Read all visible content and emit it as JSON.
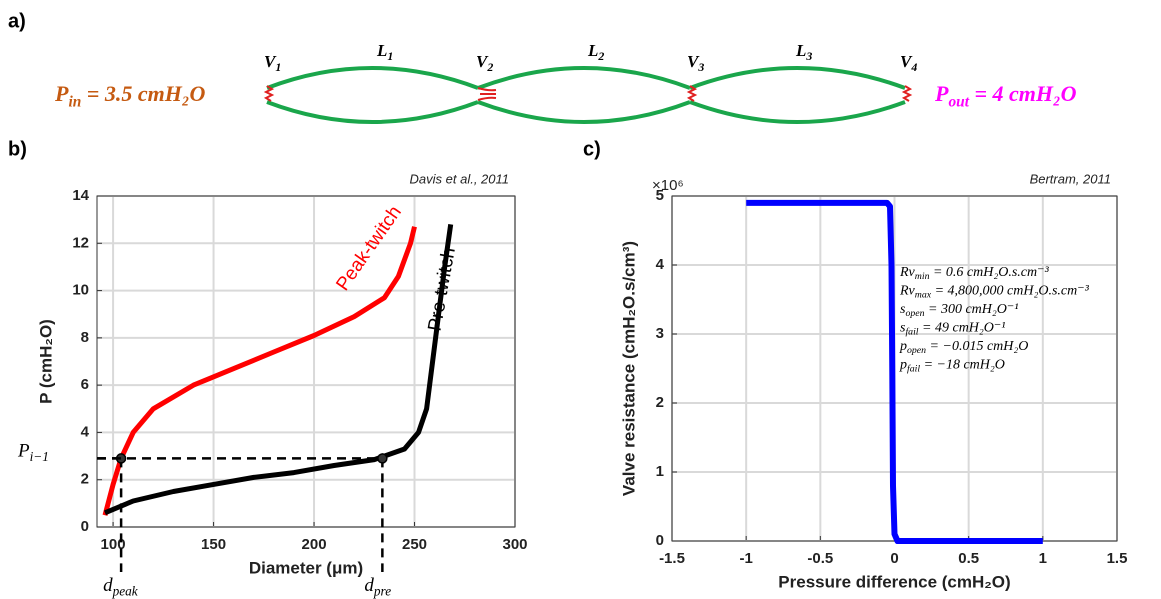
{
  "panel_labels": [
    "a)",
    "b)",
    "c)"
  ],
  "diagram": {
    "valves": [
      {
        "base": "V",
        "sub": "1"
      },
      {
        "base": "V",
        "sub": "2"
      },
      {
        "base": "V",
        "sub": "3"
      },
      {
        "base": "V",
        "sub": "4"
      }
    ],
    "vessels": [
      {
        "base": "L",
        "sub": "1"
      },
      {
        "base": "L",
        "sub": "2"
      },
      {
        "base": "L",
        "sub": "3"
      }
    ],
    "inlet": {
      "base": "P",
      "sub": "in",
      "rest": " = 3.5 cmH₂O",
      "color": "#c55a11"
    },
    "outlet": {
      "base": "P",
      "sub": "out",
      "rest": " = 4 cmH₂O",
      "color": "#ff00ff"
    }
  },
  "chart_data": [
    {
      "type": "line",
      "title": "Davis et al., 2011",
      "x_label": "Diameter (μm)",
      "y_label": "P (cmH₂O)",
      "xlim": [
        92,
        300
      ],
      "xticks": [
        100,
        150,
        200,
        250,
        300
      ],
      "ylim": [
        0,
        14
      ],
      "yticks": [
        0,
        2,
        4,
        6,
        8,
        10,
        12,
        14
      ],
      "grid": true,
      "series": [
        {
          "name": "Peak-twitch",
          "color": "#ff0000",
          "x": [
            96,
            100,
            104,
            110,
            120,
            140,
            160,
            180,
            200,
            220,
            235,
            242,
            248,
            250
          ],
          "values": [
            0.5,
            1.8,
            2.9,
            4.0,
            5.0,
            6.0,
            6.7,
            7.4,
            8.1,
            8.9,
            9.7,
            10.6,
            12.0,
            12.7
          ]
        },
        {
          "name": "Pre-twitch",
          "color": "#000000",
          "x": [
            96,
            110,
            130,
            150,
            170,
            190,
            210,
            230,
            245,
            252,
            256,
            259,
            262,
            265,
            268
          ],
          "values": [
            0.6,
            1.1,
            1.5,
            1.8,
            2.1,
            2.3,
            2.6,
            2.85,
            3.3,
            4.0,
            5.0,
            7.0,
            9.0,
            11.0,
            12.8
          ]
        }
      ],
      "reference_points": [
        {
          "x": 104,
          "y": 2.9,
          "label": {
            "base": "d",
            "sub": "peak"
          }
        },
        {
          "x": 234,
          "y": 2.9,
          "label": {
            "base": "d",
            "sub": "pre"
          }
        }
      ],
      "reference_y_label": {
        "base": "P",
        "sub": "i−1"
      }
    },
    {
      "type": "line",
      "title": "Bertram, 2011",
      "x_label": "Pressure difference (cmH₂O)",
      "y_label": "Valve resistance (cmH₂O.s/cm³)",
      "y_exponent": "×10⁶",
      "xlim": [
        -1.5,
        1.5
      ],
      "xticks": [
        -1.5,
        -1,
        -0.5,
        0,
        0.5,
        1,
        1.5
      ],
      "ylim": [
        0,
        5000000
      ],
      "yticks": [
        {
          "value": 0,
          "label": "0"
        },
        {
          "value": 1000000,
          "label": "1"
        },
        {
          "value": 2000000,
          "label": "2"
        },
        {
          "value": 3000000,
          "label": "3"
        },
        {
          "value": 4000000,
          "label": "4"
        },
        {
          "value": 5000000,
          "label": "5"
        }
      ],
      "grid": true,
      "series": [
        {
          "color": "#0000ff",
          "x": [
            -1,
            -0.05,
            -0.03,
            -0.02,
            -0.015,
            -0.01,
            0,
            0.02,
            1
          ],
          "values": [
            4900000,
            4900000,
            4850000,
            4000000,
            2450000,
            800000,
            100000,
            0,
            0
          ]
        }
      ],
      "parameters": [
        {
          "base": "Rv",
          "sub": "min",
          "rest": " = 0.6 cmH₂O.s.cm⁻³"
        },
        {
          "base": "Rv",
          "sub": "max",
          "rest": " = 4,800,000 cmH₂O.s.cm⁻³"
        },
        {
          "base": "s",
          "sub": "open",
          "rest": " = 300 cmH₂O⁻¹"
        },
        {
          "base": "s",
          "sub": "fail",
          "rest": " = 49 cmH₂O⁻¹"
        },
        {
          "base": "p",
          "sub": "open",
          "rest": " = −0.015 cmH₂O"
        },
        {
          "base": "p",
          "sub": "fail",
          "rest": " = −18 cmH₂O"
        }
      ]
    }
  ]
}
